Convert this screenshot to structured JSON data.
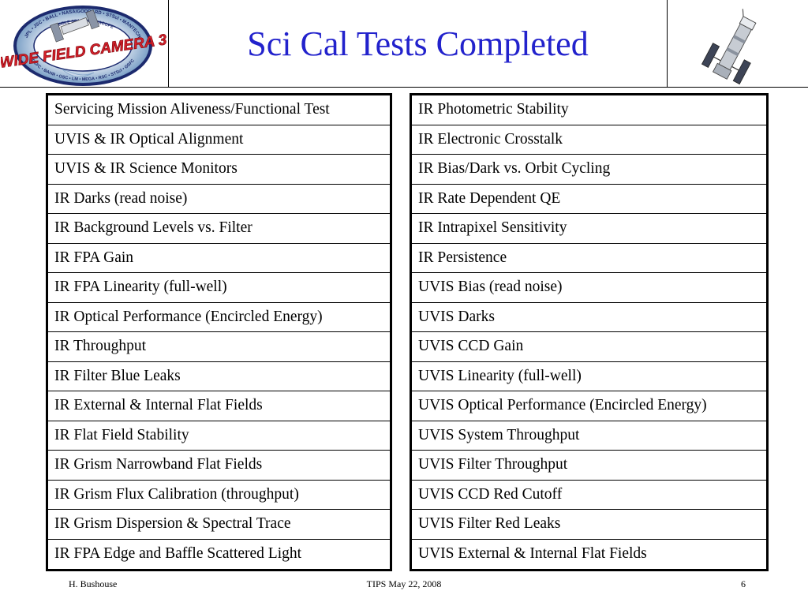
{
  "header": {
    "title": "Sci Cal Tests Completed",
    "logo": {
      "main_text": "WIDE FIELD CAMERA 3",
      "ring_text_top": "JPL • JSC • BALL • NASA/GODDARD • STScI • MANTECH",
      "ring_text_inner": "HUBBLE SPACE TELESCOPE",
      "ring_text_bottom": "GSFC • BAHR • OSC • LM • MEGA • RSC • STScI • GSFC"
    },
    "hubble_icon": "hubble-telescope-icon"
  },
  "left_table": {
    "rows": [
      "Servicing Mission Aliveness/Functional Test",
      "UVIS & IR Optical Alignment",
      "UVIS & IR Science Monitors",
      "IR Darks (read noise)",
      "IR Background Levels vs. Filter",
      "IR FPA Gain",
      "IR FPA Linearity (full-well)",
      "IR Optical Performance (Encircled Energy)",
      "IR Throughput",
      "IR Filter Blue Leaks",
      "IR External & Internal Flat Fields",
      "IR Flat Field Stability",
      "IR Grism Narrowband Flat Fields",
      "IR Grism Flux Calibration (throughput)",
      "IR Grism Dispersion & Spectral Trace",
      "IR FPA Edge and Baffle Scattered Light"
    ]
  },
  "right_table": {
    "rows": [
      "IR Photometric Stability",
      "IR Electronic Crosstalk",
      "IR Bias/Dark vs. Orbit Cycling",
      "IR Rate Dependent QE",
      "IR Intrapixel Sensitivity",
      "IR Persistence",
      "UVIS Bias (read noise)",
      "UVIS Darks",
      "UVIS CCD Gain",
      "UVIS Linearity (full-well)",
      "UVIS Optical Performance (Encircled Energy)",
      "UVIS System Throughput",
      "UVIS Filter Throughput",
      "UVIS CCD Red Cutoff",
      "UVIS Filter Red Leaks",
      "UVIS External & Internal Flat Fields"
    ]
  },
  "footer": {
    "author": "H. Bushouse",
    "event": "TIPS May 22, 2008",
    "page_number": "6"
  },
  "colors": {
    "title": "#2222cc",
    "logo_red": "#d8202a",
    "logo_navy": "#1c2a6e",
    "logo_ring": "#7fa3c8"
  }
}
